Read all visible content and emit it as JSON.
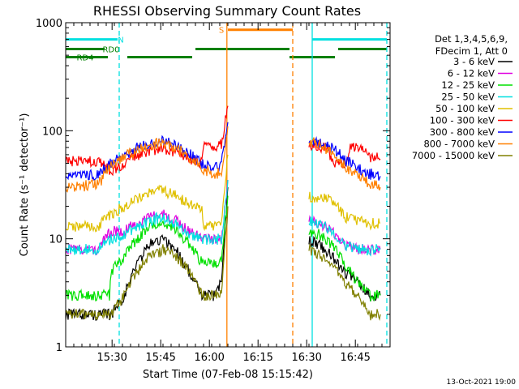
{
  "chart_data": {
    "type": "line",
    "title": "RHESSI Observing Summary Count Rates",
    "xlabel": "Start Time (07-Feb-08 15:15:42)",
    "ylabel": "Count Rate (s⁻¹ detector⁻¹)",
    "y_scale": "log",
    "ylim": [
      1,
      1000
    ],
    "xlim_minutes": [
      0,
      100
    ],
    "x_ticks": [
      {
        "label": "15:30",
        "minute": 14.3
      },
      {
        "label": "15:45",
        "minute": 29.3
      },
      {
        "label": "16:00",
        "minute": 44.3
      },
      {
        "label": "16:15",
        "minute": 59.3
      },
      {
        "label": "16:30",
        "minute": 74.3
      },
      {
        "label": "16:45",
        "minute": 89.3
      }
    ],
    "y_ticks": [
      {
        "label": "1",
        "value": 1
      },
      {
        "label": "10",
        "value": 10
      },
      {
        "label": "100",
        "value": 100
      },
      {
        "label": "1000",
        "value": 1000
      }
    ],
    "legend_header": [
      "Det 1,3,4,5,6,9,",
      "FDecim 1, Att 0"
    ],
    "legend_position": "right",
    "footer_date": "13-Oct-2021 19:00",
    "series": [
      {
        "name": "3 - 6 keV",
        "color": "#000000",
        "segments": [
          [
            [
              0,
              2
            ],
            [
              10,
              2
            ],
            [
              14,
              2
            ],
            [
              18,
              3
            ],
            [
              22,
              6
            ],
            [
              26,
              9
            ],
            [
              30,
              10
            ],
            [
              34,
              8
            ],
            [
              38,
              5
            ],
            [
              42,
              3
            ],
            [
              46,
              3
            ],
            [
              48,
              4
            ],
            [
              50,
              30
            ]
          ],
          [
            [
              75,
              10
            ],
            [
              78,
              9
            ],
            [
              82,
              7
            ],
            [
              86,
              5
            ],
            [
              90,
              4
            ],
            [
              94,
              3
            ],
            [
              97,
              3
            ]
          ]
        ]
      },
      {
        "name": "6 - 12 keV",
        "color": "#e000e0",
        "segments": [
          [
            [
              0,
              8
            ],
            [
              10,
              8
            ],
            [
              14,
              12
            ],
            [
              18,
              12
            ],
            [
              22,
              14
            ],
            [
              26,
              16
            ],
            [
              30,
              17
            ],
            [
              34,
              15
            ],
            [
              38,
              12
            ],
            [
              42,
              10
            ],
            [
              46,
              10
            ],
            [
              48,
              10
            ],
            [
              50,
              35
            ]
          ],
          [
            [
              75,
              16
            ],
            [
              78,
              14
            ],
            [
              82,
              12
            ],
            [
              86,
              9
            ],
            [
              90,
              8
            ],
            [
              94,
              8
            ],
            [
              97,
              8
            ]
          ]
        ]
      },
      {
        "name": "12 - 25 keV",
        "color": "#00e000",
        "segments": [
          [
            [
              0,
              3
            ],
            [
              10,
              3
            ],
            [
              13.5,
              3
            ],
            [
              14,
              5
            ],
            [
              18,
              7
            ],
            [
              22,
              10
            ],
            [
              26,
              13
            ],
            [
              30,
              14
            ],
            [
              34,
              12
            ],
            [
              38,
              9
            ],
            [
              42,
              6
            ],
            [
              46,
              6
            ],
            [
              48,
              6
            ],
            [
              50,
              25
            ]
          ],
          [
            [
              75,
              12
            ],
            [
              78,
              11
            ],
            [
              82,
              9
            ],
            [
              86,
              6
            ],
            [
              90,
              4
            ],
            [
              94,
              3
            ],
            [
              97,
              3
            ]
          ]
        ]
      },
      {
        "name": "25 - 50 keV",
        "color": "#00e0e0",
        "segments": [
          [
            [
              0,
              8
            ],
            [
              10,
              8
            ],
            [
              14,
              10
            ],
            [
              18,
              11
            ],
            [
              22,
              13
            ],
            [
              26,
              15
            ],
            [
              30,
              16
            ],
            [
              34,
              14
            ],
            [
              38,
              11
            ],
            [
              42,
              10
            ],
            [
              46,
              10
            ],
            [
              48,
              10
            ],
            [
              50,
              35
            ]
          ],
          [
            [
              75,
              15
            ],
            [
              78,
              14
            ],
            [
              82,
              12
            ],
            [
              86,
              9
            ],
            [
              90,
              8
            ],
            [
              94,
              8
            ],
            [
              97,
              8
            ]
          ]
        ]
      },
      {
        "name": "50 - 100 keV",
        "color": "#e0c000",
        "segments": [
          [
            [
              0,
              13
            ],
            [
              10,
              13
            ],
            [
              14,
              17
            ],
            [
              18,
              20
            ],
            [
              22,
              24
            ],
            [
              26,
              27
            ],
            [
              30,
              28
            ],
            [
              34,
              25
            ],
            [
              38,
              21
            ],
            [
              42,
              19
            ],
            [
              42.5,
              13
            ],
            [
              46,
              13
            ],
            [
              48,
              14
            ],
            [
              50,
              60
            ]
          ],
          [
            [
              75,
              25
            ],
            [
              78,
              24
            ],
            [
              82,
              23
            ],
            [
              86,
              16
            ],
            [
              90,
              15
            ],
            [
              94,
              14
            ],
            [
              97,
              14
            ]
          ]
        ]
      },
      {
        "name": "100 - 300 keV",
        "color": "#ff0000",
        "segments": [
          [
            [
              0,
              52
            ],
            [
              10,
              52
            ],
            [
              14,
              42
            ],
            [
              18,
              50
            ],
            [
              22,
              60
            ],
            [
              26,
              66
            ],
            [
              30,
              70
            ],
            [
              34,
              64
            ],
            [
              38,
              55
            ],
            [
              42,
              50
            ],
            [
              42.5,
              75
            ],
            [
              46,
              70
            ],
            [
              48,
              75
            ],
            [
              50,
              170
            ]
          ],
          [
            [
              75,
              75
            ],
            [
              78,
              72
            ],
            [
              81,
              70
            ],
            [
              82,
              50
            ],
            [
              86,
              50
            ],
            [
              88,
              75
            ],
            [
              90,
              70
            ],
            [
              94,
              58
            ],
            [
              97,
              55
            ]
          ]
        ]
      },
      {
        "name": "300 - 800 keV",
        "color": "#0000ff",
        "segments": [
          [
            [
              0,
              37
            ],
            [
              10,
              40
            ],
            [
              14,
              50
            ],
            [
              18,
              60
            ],
            [
              22,
              70
            ],
            [
              26,
              78
            ],
            [
              30,
              80
            ],
            [
              34,
              74
            ],
            [
              38,
              62
            ],
            [
              42,
              50
            ],
            [
              46,
              46
            ],
            [
              48,
              50
            ],
            [
              50,
              120
            ]
          ],
          [
            [
              75,
              82
            ],
            [
              78,
              78
            ],
            [
              82,
              70
            ],
            [
              86,
              55
            ],
            [
              90,
              45
            ],
            [
              94,
              40
            ],
            [
              97,
              38
            ]
          ]
        ]
      },
      {
        "name": "800 - 7000 keV",
        "color": "#ff8000",
        "segments": [
          [
            [
              0,
              30
            ],
            [
              10,
              32
            ],
            [
              14,
              48
            ],
            [
              18,
              58
            ],
            [
              22,
              66
            ],
            [
              26,
              75
            ],
            [
              30,
              78
            ],
            [
              34,
              70
            ],
            [
              38,
              58
            ],
            [
              42,
              45
            ],
            [
              46,
              40
            ],
            [
              48,
              42
            ],
            [
              50,
              110
            ]
          ],
          [
            [
              75,
              80
            ],
            [
              78,
              75
            ],
            [
              82,
              65
            ],
            [
              86,
              48
            ],
            [
              90,
              38
            ],
            [
              94,
              33
            ],
            [
              97,
              30
            ]
          ]
        ]
      },
      {
        "name": "7000 - 15000 keV",
        "color": "#808000",
        "segments": [
          [
            [
              0,
              2
            ],
            [
              10,
              2
            ],
            [
              14,
              2
            ],
            [
              18,
              3
            ],
            [
              22,
              5
            ],
            [
              26,
              7
            ],
            [
              30,
              8
            ],
            [
              34,
              7
            ],
            [
              38,
              5
            ],
            [
              42,
              3
            ],
            [
              46,
              3
            ],
            [
              48,
              3
            ],
            [
              50,
              20
            ]
          ],
          [
            [
              75,
              8
            ],
            [
              78,
              7
            ],
            [
              82,
              6
            ],
            [
              86,
              4
            ],
            [
              90,
              3
            ],
            [
              94,
              2
            ],
            [
              97,
              2
            ]
          ]
        ]
      }
    ],
    "flags": [
      {
        "label": "N",
        "color": "#00e0e0",
        "value": 700,
        "start": 0,
        "end": 16,
        "label_minute": 17
      },
      {
        "label": "",
        "color": "#00e0e0",
        "value": 700,
        "start": 76,
        "end": 99,
        "label_minute": null
      },
      {
        "label": "RD0",
        "color": "#008000",
        "value": 570,
        "start": 0,
        "end": 12,
        "label_minute": 14
      },
      {
        "label": "",
        "color": "#008000",
        "value": 570,
        "start": 40,
        "end": 69,
        "label_minute": null
      },
      {
        "label": "",
        "color": "#008000",
        "value": 570,
        "start": 84,
        "end": 99,
        "label_minute": null
      },
      {
        "label": "RD4",
        "color": "#008000",
        "value": 480,
        "start": 0,
        "end": 13,
        "label_minute": 6
      },
      {
        "label": "",
        "color": "#008000",
        "value": 480,
        "start": 19,
        "end": 39,
        "label_minute": null
      },
      {
        "label": "",
        "color": "#008000",
        "value": 480,
        "start": 69,
        "end": 83,
        "label_minute": null
      },
      {
        "label": "S",
        "color": "#ff8000",
        "value": 860,
        "start": 50,
        "end": 70,
        "label_minute": 48
      }
    ],
    "vertical_markers": [
      {
        "minute": 16.5,
        "color": "#00e0e0",
        "style": "dashed"
      },
      {
        "minute": 49.7,
        "color": "#ff8000",
        "style": "solid"
      },
      {
        "minute": 70,
        "color": "#ff8000",
        "style": "dashed"
      },
      {
        "minute": 76,
        "color": "#00e0e0",
        "style": "solid"
      },
      {
        "minute": 99,
        "color": "#00e0e0",
        "style": "dashed"
      }
    ]
  }
}
